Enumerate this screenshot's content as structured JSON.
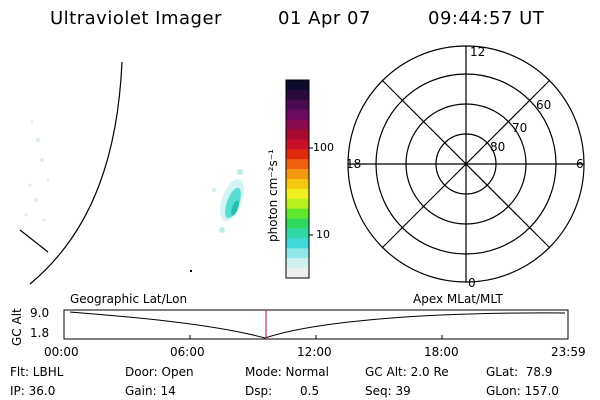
{
  "header": {
    "title": "Ultraviolet Imager",
    "date": "01 Apr 07",
    "time": "09:44:57 UT"
  },
  "colorbar": {
    "unit_label": "photon cm⁻²s⁻¹",
    "tick_100": "100",
    "tick_10": "10",
    "colors": [
      "#0a0a2a",
      "#2a0a3a",
      "#4a0a50",
      "#6a0a60",
      "#8a0a50",
      "#a80a30",
      "#c8102a",
      "#e02a10",
      "#f06010",
      "#f59a10",
      "#f7c810",
      "#f0f020",
      "#b8f020",
      "#60e830",
      "#30d860",
      "#30d8a8",
      "#40d8d8",
      "#90e8e8",
      "#d0f0f0",
      "#eeeeee"
    ]
  },
  "polar": {
    "mlt_labels": {
      "top": "12",
      "left": "18",
      "right": "6",
      "bottom": "0"
    },
    "lat_labels": [
      "60",
      "70",
      "80"
    ]
  },
  "timeline": {
    "y_label": "GC Alt",
    "y_max": "9.0",
    "y_min": "1.8",
    "left_caption": "Geographic Lat/Lon",
    "right_caption": "Apex MLat/MLT",
    "ticks": [
      "00:00",
      "06:00",
      "12:00",
      "18:00",
      "23:59"
    ]
  },
  "status": {
    "filter": "Flt: LBHL",
    "ip": "IP: 36.0",
    "door": "Door: Open",
    "gain": "Gain: 14",
    "mode": "Mode: Normal",
    "dsp_label": "Dsp:",
    "dsp_value": "0.5",
    "gc_alt": "GC Alt: 2.0 Re",
    "seq": "Seq: 39",
    "glat": "GLat:  78.9",
    "glon": "GLon: 157.0"
  }
}
